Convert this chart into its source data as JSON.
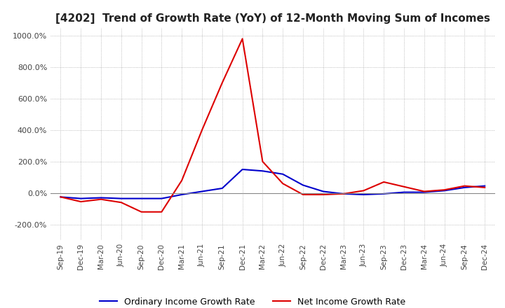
{
  "title": "[4202]  Trend of Growth Rate (YoY) of 12-Month Moving Sum of Incomes",
  "title_fontsize": 11,
  "ylim": [
    -300,
    1050
  ],
  "yticks": [
    -200,
    0,
    200,
    400,
    600,
    800,
    1000
  ],
  "background_color": "#ffffff",
  "grid_color": "#aaaaaa",
  "ordinary_color": "#0000cc",
  "net_color": "#dd0000",
  "legend_labels": [
    "Ordinary Income Growth Rate",
    "Net Income Growth Rate"
  ],
  "x_labels": [
    "Sep-19",
    "Dec-19",
    "Mar-20",
    "Jun-20",
    "Sep-20",
    "Dec-20",
    "Mar-21",
    "Jun-21",
    "Sep-21",
    "Dec-21",
    "Mar-22",
    "Jun-22",
    "Sep-22",
    "Dec-22",
    "Mar-23",
    "Jun-23",
    "Sep-23",
    "Dec-23",
    "Mar-24",
    "Jun-24",
    "Sep-24",
    "Dec-24"
  ],
  "ordinary_income_growth": [
    -25,
    -35,
    -30,
    -35,
    -35,
    -35,
    -10,
    10,
    30,
    150,
    140,
    120,
    50,
    10,
    -5,
    -10,
    -5,
    5,
    5,
    15,
    35,
    45
  ],
  "net_income_growth": [
    -25,
    -55,
    -40,
    -60,
    -120,
    -120,
    80,
    400,
    700,
    980,
    200,
    60,
    -10,
    -10,
    -5,
    15,
    70,
    40,
    10,
    20,
    45,
    35
  ]
}
